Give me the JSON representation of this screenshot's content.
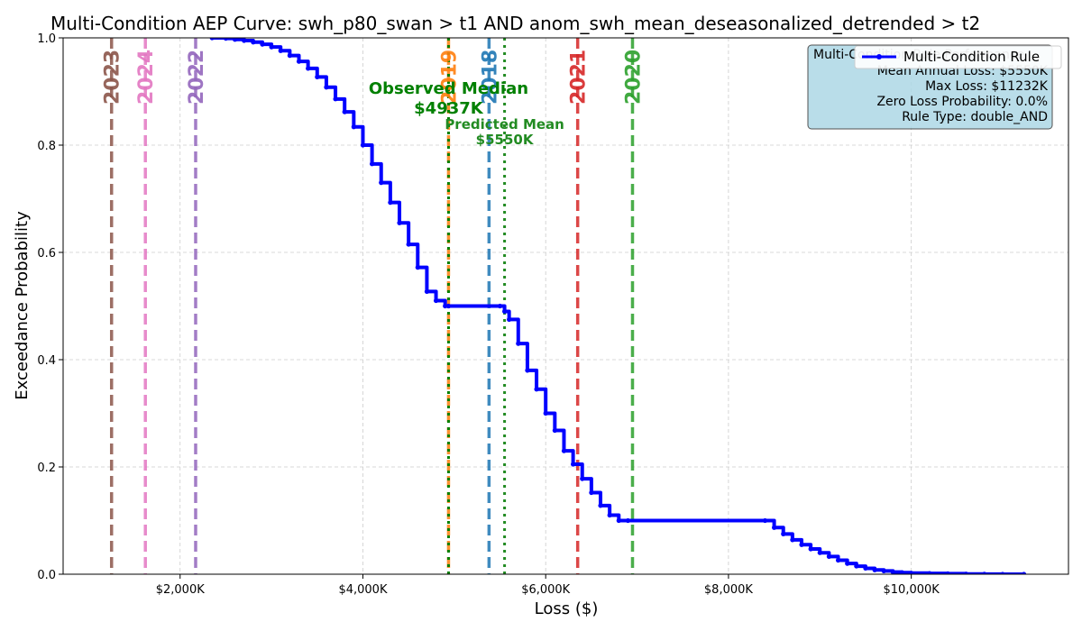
{
  "chart_data": {
    "type": "line",
    "title": "Multi-Condition AEP Curve: swh_p80_swan > t1 AND anom_swh_mean_deseasonalized_detrended > t2",
    "xlabel": "Loss ($)",
    "ylabel": "Exceedance Probability",
    "xlim": [
      720,
      11720
    ],
    "ylim": [
      0,
      1
    ],
    "x_ticks": [
      2000,
      4000,
      6000,
      8000,
      10000
    ],
    "x_tick_labels": [
      "$2,000K",
      "$4,000K",
      "$6,000K",
      "$8,000K",
      "$10,000K"
    ],
    "y_ticks": [
      0.0,
      0.2,
      0.4,
      0.6,
      0.8,
      1.0
    ],
    "y_tick_labels": [
      "0.0",
      "0.2",
      "0.4",
      "0.6",
      "0.8",
      "1.0"
    ],
    "grid": true,
    "series": [
      {
        "name": "Multi-Condition Rule",
        "color": "#0000ff",
        "x": [
          2350,
          2500,
          2600,
          2700,
          2800,
          2900,
          3000,
          3100,
          3200,
          3300,
          3400,
          3500,
          3600,
          3700,
          3800,
          3900,
          4000,
          4100,
          4200,
          4300,
          4400,
          4500,
          4600,
          4700,
          4800,
          4900,
          4937,
          5500,
          5550,
          5600,
          5700,
          5800,
          5900,
          6000,
          6100,
          6200,
          6300,
          6400,
          6500,
          6600,
          6700,
          6800,
          6900,
          8400,
          8500,
          8600,
          8700,
          8800,
          8900,
          9000,
          9100,
          9200,
          9300,
          9400,
          9500,
          9600,
          9700,
          9800,
          9900,
          10000,
          10200,
          10400,
          10600,
          10800,
          11000,
          11232
        ],
        "y": [
          1.0,
          0.999,
          0.997,
          0.995,
          0.992,
          0.988,
          0.983,
          0.976,
          0.967,
          0.956,
          0.943,
          0.927,
          0.908,
          0.886,
          0.862,
          0.834,
          0.8,
          0.765,
          0.73,
          0.693,
          0.655,
          0.615,
          0.572,
          0.527,
          0.51,
          0.5,
          0.5,
          0.5,
          0.49,
          0.475,
          0.43,
          0.38,
          0.345,
          0.3,
          0.268,
          0.23,
          0.205,
          0.178,
          0.152,
          0.128,
          0.11,
          0.1,
          0.1,
          0.1,
          0.087,
          0.075,
          0.064,
          0.055,
          0.047,
          0.04,
          0.033,
          0.026,
          0.02,
          0.015,
          0.011,
          0.008,
          0.006,
          0.004,
          0.003,
          0.002,
          0.0015,
          0.001,
          0.0005,
          0.0002,
          0.0001,
          0.0
        ]
      }
    ],
    "year_lines": [
      {
        "label": "2023",
        "x": 1250,
        "color": "#8c564b"
      },
      {
        "label": "2024",
        "x": 1620,
        "color": "#e377c2"
      },
      {
        "label": "2022",
        "x": 2170,
        "color": "#9467bd"
      },
      {
        "label": "2019",
        "x": 4937,
        "color": "#ff7f0e"
      },
      {
        "label": "2018",
        "x": 5380,
        "color": "#1f77b4"
      },
      {
        "label": "2021",
        "x": 6350,
        "color": "#d62728"
      },
      {
        "label": "2020",
        "x": 6950,
        "color": "#2ca02c"
      }
    ],
    "median_line": {
      "x": 4937,
      "label_line1": "Observed Median",
      "label_line2": "$4937K",
      "color": "#008000"
    },
    "mean_line": {
      "x": 5550,
      "label_line1": "Predicted Mean",
      "label_line2": "$5550K",
      "color": "#228b22"
    },
    "legend": {
      "placement": "top-right",
      "entry": "Multi-Condition Rule"
    },
    "stats_box": {
      "title": "Multi-Condition Rule Performance",
      "lines": [
        "Mean Annual Loss: $5550K",
        "Max Loss: $11232K",
        "Zero Loss Probability: 0.0%",
        "Rule Type: double_AND"
      ],
      "background": "#add8e6"
    }
  }
}
